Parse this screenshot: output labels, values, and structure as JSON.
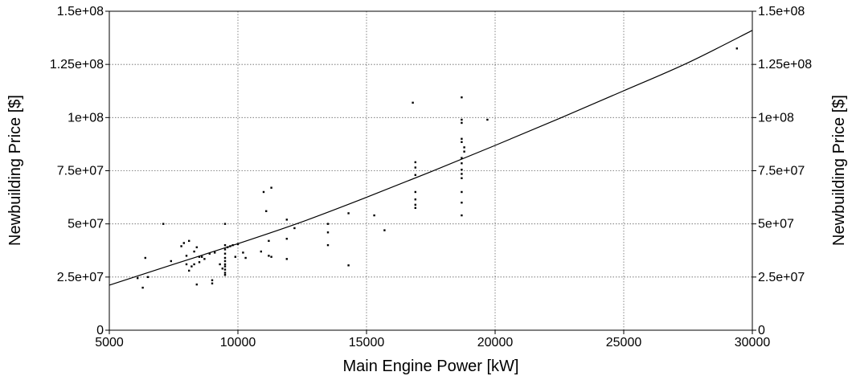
{
  "chart_data": {
    "type": "scatter",
    "title": "",
    "xlabel": "Main Engine Power [kW]",
    "ylabel": "Newbuilding Price [$]",
    "ylabel_right": "Newbuilding Price [$]",
    "xlim": [
      5000,
      30000
    ],
    "ylim": [
      0,
      150000000
    ],
    "x_ticks": [
      5000,
      10000,
      15000,
      20000,
      25000,
      30000
    ],
    "x_tick_labels": [
      "5000",
      "10000",
      "15000",
      "20000",
      "25000",
      "30000"
    ],
    "y_ticks": [
      0,
      25000000,
      50000000,
      75000000,
      100000000,
      125000000,
      150000000
    ],
    "y_tick_labels": [
      "0",
      "2.5e+07",
      "5e+07",
      "7.5e+07",
      "1e+08",
      "1.25e+08",
      "1.5e+08"
    ],
    "grid": true,
    "colors": {
      "points": "#000000",
      "curve": "#000000",
      "grid": "#666666"
    },
    "series": [
      {
        "kind": "points",
        "x": [
          6100,
          6300,
          6400,
          6500,
          7100,
          7400,
          7800,
          7900,
          8000,
          8000,
          8100,
          8100,
          8200,
          8300,
          8300,
          8400,
          8400,
          8500,
          8500,
          8600,
          8700,
          8900,
          9000,
          9000,
          9100,
          9300,
          9400,
          9500,
          9500,
          9500,
          9500,
          9500,
          9500,
          9500,
          9500,
          9500,
          9500,
          9500,
          9600,
          9700,
          9800,
          9900,
          10000,
          10200,
          10300,
          10900,
          11000,
          11100,
          11200,
          11200,
          11300,
          11300,
          11900,
          11900,
          11900,
          12200,
          13500,
          13500,
          13500,
          14300,
          14300,
          15300,
          15700,
          16800,
          16900,
          16900,
          16900,
          16900,
          16900,
          16900,
          16900,
          18700,
          18700,
          18700,
          18700,
          18700,
          18700,
          18700,
          18700,
          18700,
          18700,
          18700,
          18700,
          18700,
          18800,
          18800,
          19700,
          29400
        ],
        "y": [
          24500000,
          20000000,
          34000000,
          25000000,
          50000000,
          32500000,
          39500000,
          41000000,
          31000000,
          35000000,
          28000000,
          42000000,
          30000000,
          37000000,
          31000000,
          21500000,
          39000000,
          32000000,
          34500000,
          34500000,
          33500000,
          36000000,
          22000000,
          23500000,
          36500000,
          31000000,
          29000000,
          50000000,
          40000000,
          38000000,
          36000000,
          34000000,
          32500000,
          31000000,
          30000000,
          28500000,
          27000000,
          26000000,
          39000000,
          39500000,
          40000000,
          34500000,
          40500000,
          36500000,
          34000000,
          37000000,
          65000000,
          56000000,
          35000000,
          42000000,
          67000000,
          34500000,
          52000000,
          43000000,
          33500000,
          48000000,
          50000000,
          46000000,
          40000000,
          55000000,
          30500000,
          54000000,
          47000000,
          107000000,
          79000000,
          76500000,
          73000000,
          65000000,
          61500000,
          59000000,
          57500000,
          109500000,
          99000000,
          97500000,
          90000000,
          88500000,
          81000000,
          78500000,
          75500000,
          73500000,
          71500000,
          65000000,
          60000000,
          54000000,
          84000000,
          86000000,
          99000000,
          132500000
        ]
      },
      {
        "kind": "fit-curve",
        "x": [
          5000,
          7500,
          10000,
          12500,
          15000,
          17500,
          20000,
          22500,
          25000,
          27500,
          30000
        ],
        "y": [
          21200000,
          31000000,
          40700000,
          51000000,
          62500000,
          74500000,
          86900000,
          99600000,
          112600000,
          125800000,
          141000000
        ]
      }
    ]
  }
}
